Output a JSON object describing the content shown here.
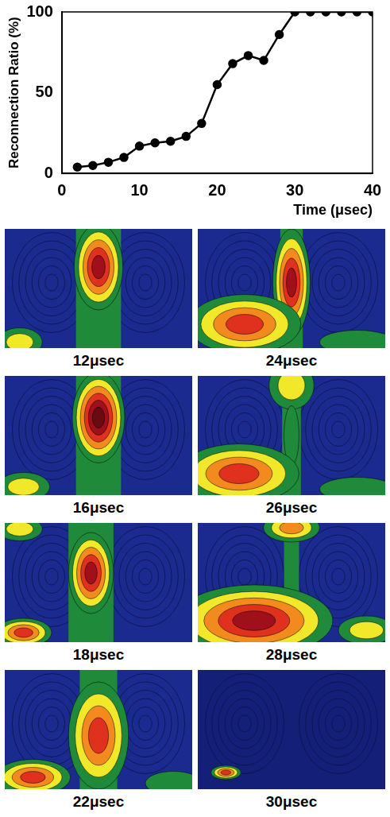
{
  "chart_data": {
    "type": "line",
    "x": [
      2,
      4,
      6,
      8,
      10,
      12,
      14,
      16,
      18,
      20,
      22,
      24,
      26,
      28,
      30,
      32,
      34,
      36,
      38,
      40
    ],
    "values": [
      4,
      5,
      7,
      10,
      17,
      19,
      20,
      23,
      31,
      55,
      68,
      73,
      70,
      86,
      100,
      100,
      100,
      100,
      100,
      100
    ],
    "xlabel": "Time (μsec)",
    "ylabel": "Reconnection Ratio (%)",
    "xlim": [
      0,
      40
    ],
    "xticks": [
      0,
      10,
      20,
      30,
      40
    ],
    "ylim": [
      0,
      100
    ],
    "yticks": [
      0,
      50,
      100
    ],
    "grid": false,
    "color": "#000000",
    "marker": "circle",
    "line_style": "solid"
  },
  "panels": [
    {
      "label": "12μsec"
    },
    {
      "label": "16μsec"
    },
    {
      "label": "18μsec"
    },
    {
      "label": "22μsec"
    },
    {
      "label": "24μsec"
    },
    {
      "label": "26μsec"
    },
    {
      "label": "28μsec"
    },
    {
      "label": "30μsec"
    }
  ]
}
